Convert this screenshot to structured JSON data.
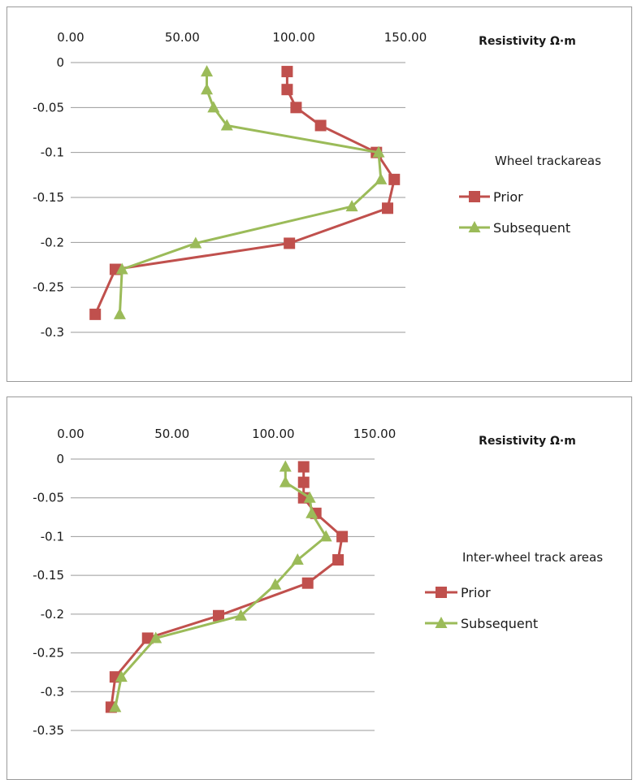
{
  "chart_data": [
    {
      "type": "line",
      "x_ticks": [
        "0.00",
        "50.00",
        "100.00",
        "150.00"
      ],
      "y_ticks": [
        "0",
        "-0.05",
        "-0.1",
        "-0.15",
        "-0.2",
        "-0.25",
        "-0.3"
      ],
      "xlim": [
        0,
        150
      ],
      "ylim": [
        -0.3,
        0
      ],
      "xlabel": "Resistivity Ω·m",
      "legend_title": "Wheel trackareas",
      "grid": true,
      "legend_position": "right",
      "series": [
        {
          "name": "Prior",
          "color": "#c0504d",
          "marker": "square",
          "points": [
            {
              "x": 97,
              "y": -0.01
            },
            {
              "x": 97,
              "y": -0.03
            },
            {
              "x": 101,
              "y": -0.05
            },
            {
              "x": 112,
              "y": -0.07
            },
            {
              "x": 137,
              "y": -0.1
            },
            {
              "x": 145,
              "y": -0.13
            },
            {
              "x": 142,
              "y": -0.162
            },
            {
              "x": 98,
              "y": -0.201
            },
            {
              "x": 20,
              "y": -0.23
            },
            {
              "x": 11,
              "y": -0.28
            }
          ]
        },
        {
          "name": "Subsequent",
          "color": "#9bbb59",
          "marker": "triangle",
          "points": [
            {
              "x": 61,
              "y": -0.01
            },
            {
              "x": 61,
              "y": -0.03
            },
            {
              "x": 64,
              "y": -0.05
            },
            {
              "x": 70,
              "y": -0.07
            },
            {
              "x": 138,
              "y": -0.1
            },
            {
              "x": 139,
              "y": -0.13
            },
            {
              "x": 126,
              "y": -0.16
            },
            {
              "x": 56,
              "y": -0.201
            },
            {
              "x": 23,
              "y": -0.23
            },
            {
              "x": 22,
              "y": -0.28
            }
          ]
        }
      ]
    },
    {
      "type": "line",
      "x_ticks": [
        "0.00",
        "50.00",
        "100.00",
        "150.00"
      ],
      "y_ticks": [
        "0",
        "-0.05",
        "-0.1",
        "-0.15",
        "-0.2",
        "-0.25",
        "-0.3",
        "-0.35"
      ],
      "xlim": [
        0,
        150
      ],
      "ylim": [
        -0.35,
        0
      ],
      "xlabel": "Resistivity Ω·m",
      "legend_title": "Inter-wheel track areas",
      "grid": true,
      "legend_position": "right",
      "series": [
        {
          "name": "Prior",
          "color": "#c0504d",
          "marker": "square",
          "points": [
            {
              "x": 115,
              "y": -0.01
            },
            {
              "x": 115,
              "y": -0.03
            },
            {
              "x": 115,
              "y": -0.05
            },
            {
              "x": 121,
              "y": -0.07
            },
            {
              "x": 134,
              "y": -0.1
            },
            {
              "x": 132,
              "y": -0.13
            },
            {
              "x": 117,
              "y": -0.16
            },
            {
              "x": 73,
              "y": -0.202
            },
            {
              "x": 38,
              "y": -0.231
            },
            {
              "x": 22,
              "y": -0.281
            },
            {
              "x": 20,
              "y": -0.32
            }
          ]
        },
        {
          "name": "Subsequent",
          "color": "#9bbb59",
          "marker": "triangle",
          "points": [
            {
              "x": 106,
              "y": -0.01
            },
            {
              "x": 106,
              "y": -0.03
            },
            {
              "x": 118,
              "y": -0.05
            },
            {
              "x": 119,
              "y": -0.07
            },
            {
              "x": 126,
              "y": -0.1
            },
            {
              "x": 112,
              "y": -0.13
            },
            {
              "x": 101,
              "y": -0.162
            },
            {
              "x": 84,
              "y": -0.202
            },
            {
              "x": 42,
              "y": -0.231
            },
            {
              "x": 25,
              "y": -0.281
            },
            {
              "x": 22,
              "y": -0.32
            }
          ]
        }
      ]
    }
  ]
}
